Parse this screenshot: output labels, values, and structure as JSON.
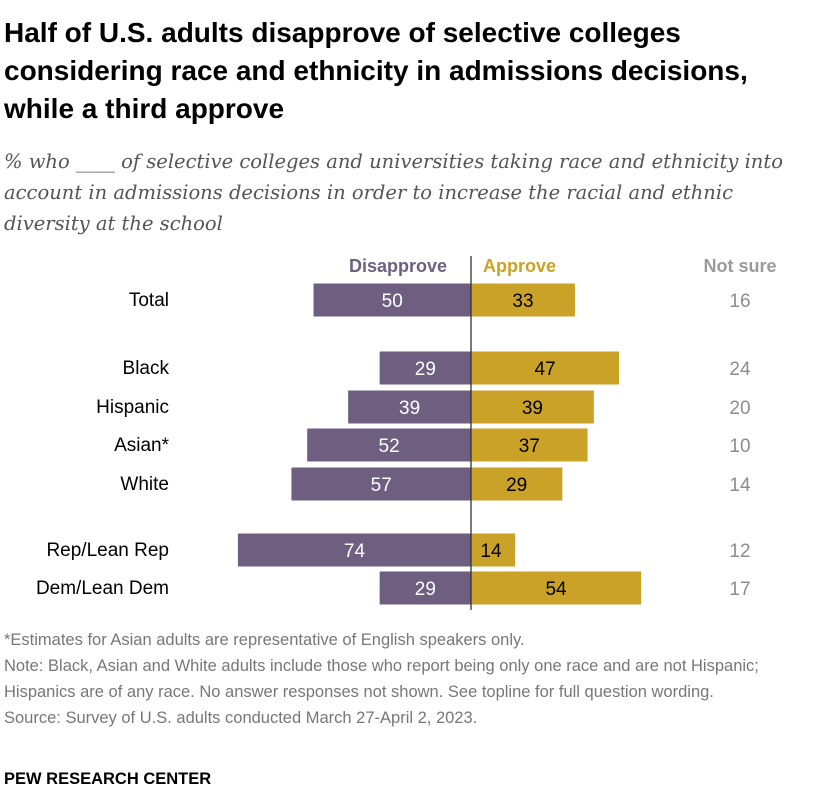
{
  "title": "Half of U.S. adults disapprove of selective colleges considering race and ethnicity in admissions decisions, while a third approve",
  "subtitle": "% who ____ of selective colleges and universities taking race and ethnicity into account in admissions decisions in order to increase the racial and ethnic diversity at the school",
  "colors": {
    "disapprove": "#6e5f80",
    "approve": "#c9a227",
    "not_sure": "#8c8c8c"
  },
  "chart_data": {
    "type": "bar",
    "orientation": "diverging-horizontal",
    "categories": [
      "Total",
      "Black",
      "Hispanic",
      "Asian*",
      "White",
      "Rep/Lean Rep",
      "Dem/Lean Dem"
    ],
    "series": [
      {
        "name": "Disapprove",
        "values": [
          50,
          29,
          39,
          52,
          57,
          74,
          29
        ]
      },
      {
        "name": "Approve",
        "values": [
          33,
          47,
          39,
          37,
          29,
          14,
          54
        ]
      },
      {
        "name": "Not sure",
        "values": [
          16,
          24,
          20,
          10,
          14,
          12,
          17
        ]
      }
    ]
  },
  "notes": {
    "asterisk": "*Estimates for Asian adults are representative of English speakers only.",
    "note": "Note: Black, Asian and White adults include those who report being only one race and are not Hispanic; Hispanics are of any race. No answer responses not shown. See topline for full question wording.",
    "source": "Source: Survey of U.S. adults conducted March 27-April 2, 2023."
  },
  "brand": "PEW RESEARCH CENTER"
}
